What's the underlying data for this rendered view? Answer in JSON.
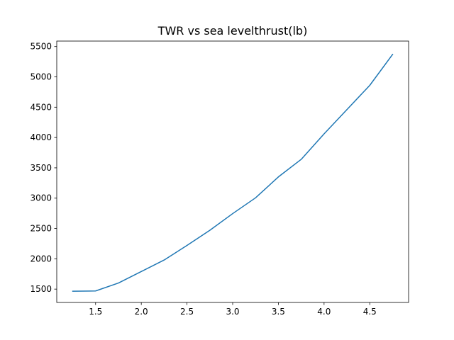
{
  "chart_data": {
    "type": "line",
    "title": "TWR vs sea levelthrust(lb)",
    "xlabel": "",
    "ylabel": "",
    "xlim": [
      1.075,
      4.925
    ],
    "ylim": [
      1280,
      5590
    ],
    "grid": false,
    "x_ticks": [
      1.5,
      2.0,
      2.5,
      3.0,
      3.5,
      4.0,
      4.5
    ],
    "x_tick_labels": [
      "1.5",
      "2.0",
      "2.5",
      "3.0",
      "3.5",
      "4.0",
      "4.5"
    ],
    "y_ticks": [
      1500,
      2000,
      2500,
      3000,
      3500,
      4000,
      4500,
      5000,
      5500
    ],
    "y_tick_labels": [
      "1500",
      "2000",
      "2500",
      "3000",
      "3500",
      "4000",
      "4500",
      "5000",
      "5500"
    ],
    "series": [
      {
        "color": "#1f77b4",
        "x": [
          1.25,
          1.5,
          1.75,
          2.0,
          2.25,
          2.5,
          2.75,
          3.0,
          3.25,
          3.5,
          3.75,
          4.0,
          4.25,
          4.5,
          4.75
        ],
        "y": [
          1465,
          1470,
          1600,
          1790,
          1980,
          2220,
          2470,
          2745,
          3005,
          3350,
          3640,
          4060,
          4460,
          4860,
          5370
        ]
      }
    ]
  }
}
